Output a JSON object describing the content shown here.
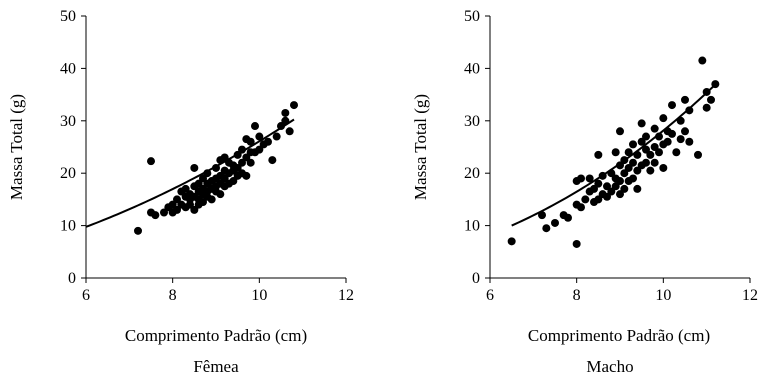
{
  "chart_data": [
    {
      "type": "scatter",
      "caption": "Fêmea",
      "xlabel": "Comprimento Padrão (cm)",
      "ylabel": "Massa Total (g)",
      "xlim": [
        6,
        12
      ],
      "ylim": [
        0,
        50
      ],
      "xticks": [
        "6",
        "8",
        "10",
        "12"
      ],
      "yticks": [
        "0",
        "10",
        "20",
        "30",
        "40",
        "50"
      ],
      "grid": false,
      "trend": {
        "a": 0.31,
        "b": 1.925,
        "x_from": 6,
        "x_to": 10.8
      },
      "points": [
        [
          7.2,
          9
        ],
        [
          7.5,
          22.3
        ],
        [
          7.5,
          12.5
        ],
        [
          7.6,
          12
        ],
        [
          7.8,
          12.5
        ],
        [
          7.9,
          13.5
        ],
        [
          8.0,
          12.5
        ],
        [
          8.0,
          14
        ],
        [
          8.1,
          13
        ],
        [
          8.1,
          15
        ],
        [
          8.2,
          14
        ],
        [
          8.2,
          16.5
        ],
        [
          8.3,
          13.5
        ],
        [
          8.3,
          15.5
        ],
        [
          8.3,
          17
        ],
        [
          8.4,
          14
        ],
        [
          8.4,
          15
        ],
        [
          8.4,
          16
        ],
        [
          8.5,
          13
        ],
        [
          8.5,
          15.5
        ],
        [
          8.5,
          17.5
        ],
        [
          8.5,
          21
        ],
        [
          8.6,
          14
        ],
        [
          8.6,
          15
        ],
        [
          8.6,
          16.5
        ],
        [
          8.6,
          18
        ],
        [
          8.7,
          14.5
        ],
        [
          8.7,
          16
        ],
        [
          8.7,
          17
        ],
        [
          8.7,
          19
        ],
        [
          8.8,
          15.5
        ],
        [
          8.8,
          16.5
        ],
        [
          8.8,
          18
        ],
        [
          8.8,
          20
        ],
        [
          8.9,
          15
        ],
        [
          8.9,
          17
        ],
        [
          8.9,
          18.5
        ],
        [
          9.0,
          16.5
        ],
        [
          9.0,
          17.5
        ],
        [
          9.0,
          19
        ],
        [
          9.0,
          21
        ],
        [
          9.1,
          16
        ],
        [
          9.1,
          18
        ],
        [
          9.1,
          19.5
        ],
        [
          9.1,
          22.5
        ],
        [
          9.2,
          17.5
        ],
        [
          9.2,
          19
        ],
        [
          9.2,
          20.5
        ],
        [
          9.2,
          23
        ],
        [
          9.3,
          18
        ],
        [
          9.3,
          20
        ],
        [
          9.3,
          22
        ],
        [
          9.4,
          18.5
        ],
        [
          9.4,
          20.5
        ],
        [
          9.4,
          21.5
        ],
        [
          9.5,
          19.5
        ],
        [
          9.5,
          21
        ],
        [
          9.5,
          23.5
        ],
        [
          9.6,
          20
        ],
        [
          9.6,
          22
        ],
        [
          9.6,
          24.5
        ],
        [
          9.7,
          19.5
        ],
        [
          9.7,
          23
        ],
        [
          9.7,
          26.5
        ],
        [
          9.8,
          22
        ],
        [
          9.8,
          24
        ],
        [
          9.8,
          26
        ],
        [
          9.9,
          24
        ],
        [
          9.9,
          29
        ],
        [
          10.0,
          24.5
        ],
        [
          10.0,
          27
        ],
        [
          10.1,
          25.5
        ],
        [
          10.2,
          26
        ],
        [
          10.3,
          22.5
        ],
        [
          10.4,
          27
        ],
        [
          10.5,
          29
        ],
        [
          10.6,
          30
        ],
        [
          10.6,
          31.5
        ],
        [
          10.7,
          28
        ],
        [
          10.8,
          33
        ]
      ]
    },
    {
      "type": "scatter",
      "caption": "Macho",
      "xlabel": "Comprimento Padrão (cm)",
      "ylabel": "Massa Total (g)",
      "xlim": [
        6,
        12
      ],
      "ylim": [
        0,
        50
      ],
      "xticks": [
        "6",
        "8",
        "10",
        "12"
      ],
      "yticks": [
        "0",
        "10",
        "20",
        "30",
        "40",
        "50"
      ],
      "grid": false,
      "trend": {
        "a": 0.112,
        "b": 2.4,
        "x_from": 6.5,
        "x_to": 11.2
      },
      "points": [
        [
          6.5,
          7
        ],
        [
          7.2,
          12
        ],
        [
          7.3,
          9.5
        ],
        [
          7.5,
          10.5
        ],
        [
          7.7,
          12
        ],
        [
          7.8,
          11.5
        ],
        [
          8.0,
          18.5
        ],
        [
          8.0,
          6.5
        ],
        [
          8.0,
          14
        ],
        [
          8.1,
          13.5
        ],
        [
          8.1,
          19
        ],
        [
          8.2,
          15
        ],
        [
          8.3,
          16.5
        ],
        [
          8.3,
          19
        ],
        [
          8.4,
          14.5
        ],
        [
          8.4,
          17
        ],
        [
          8.5,
          15
        ],
        [
          8.5,
          18
        ],
        [
          8.5,
          23.5
        ],
        [
          8.6,
          16
        ],
        [
          8.6,
          19.5
        ],
        [
          8.7,
          15.5
        ],
        [
          8.7,
          17.5
        ],
        [
          8.8,
          16.5
        ],
        [
          8.8,
          20
        ],
        [
          8.9,
          17.5
        ],
        [
          8.9,
          19
        ],
        [
          8.9,
          24
        ],
        [
          9.0,
          16
        ],
        [
          9.0,
          18.5
        ],
        [
          9.0,
          21.5
        ],
        [
          9.0,
          28
        ],
        [
          9.1,
          17
        ],
        [
          9.1,
          20
        ],
        [
          9.1,
          22.5
        ],
        [
          9.2,
          18.5
        ],
        [
          9.2,
          21
        ],
        [
          9.2,
          24
        ],
        [
          9.3,
          19
        ],
        [
          9.3,
          22
        ],
        [
          9.3,
          25.5
        ],
        [
          9.4,
          17
        ],
        [
          9.4,
          20.5
        ],
        [
          9.4,
          23.5
        ],
        [
          9.5,
          21.5
        ],
        [
          9.5,
          26
        ],
        [
          9.5,
          29.5
        ],
        [
          9.6,
          22
        ],
        [
          9.6,
          24.5
        ],
        [
          9.6,
          27
        ],
        [
          9.7,
          20.5
        ],
        [
          9.7,
          23.5
        ],
        [
          9.8,
          22
        ],
        [
          9.8,
          25
        ],
        [
          9.8,
          28.5
        ],
        [
          9.9,
          24
        ],
        [
          9.9,
          27
        ],
        [
          10.0,
          21
        ],
        [
          10.0,
          25.5
        ],
        [
          10.0,
          30.5
        ],
        [
          10.1,
          26
        ],
        [
          10.1,
          28
        ],
        [
          10.2,
          27.5
        ],
        [
          10.2,
          33
        ],
        [
          10.3,
          24
        ],
        [
          10.4,
          26.5
        ],
        [
          10.4,
          30
        ],
        [
          10.5,
          28
        ],
        [
          10.5,
          34
        ],
        [
          10.6,
          26
        ],
        [
          10.6,
          32
        ],
        [
          10.8,
          23.5
        ],
        [
          10.9,
          41.5
        ],
        [
          11.0,
          32.5
        ],
        [
          11.0,
          35.5
        ],
        [
          11.1,
          34
        ],
        [
          11.2,
          37
        ]
      ]
    }
  ]
}
